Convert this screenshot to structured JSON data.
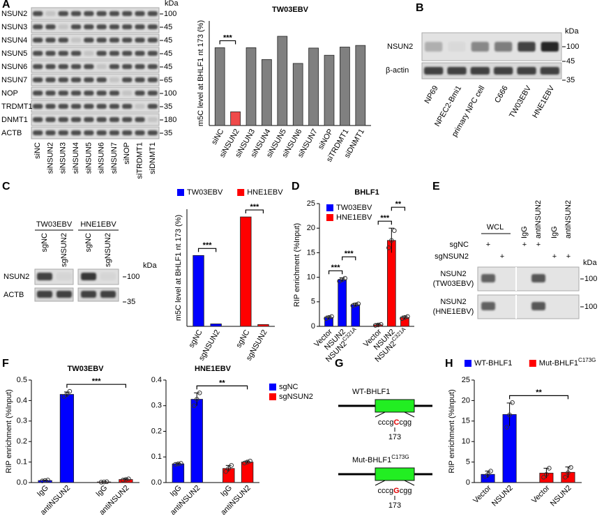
{
  "panel_labels": [
    "A",
    "B",
    "C",
    "D",
    "E",
    "F",
    "G",
    "H"
  ],
  "blots": {
    "A": {
      "kda": "kDa",
      "rows": [
        {
          "name": "NSUN2",
          "marker": "100"
        },
        {
          "name": "NSUN3",
          "marker": "45"
        },
        {
          "name": "NSUN4",
          "marker": "45"
        },
        {
          "name": "NSUN5",
          "marker": "45"
        },
        {
          "name": "NSUN6",
          "marker": "45"
        },
        {
          "name": "NSUN7",
          "marker": "65"
        },
        {
          "name": "NOP",
          "marker": "100"
        },
        {
          "name": "TRDMT1",
          "marker": "35"
        },
        {
          "name": "DNMT1",
          "marker": "180"
        },
        {
          "name": "ACTB",
          "marker": "35"
        }
      ],
      "lanes": [
        "siNC",
        "siNSUN2",
        "siNSUN3",
        "siNSUN4",
        "siNSUN5",
        "siNSUN6",
        "siNSUN7",
        "siNOP",
        "siTRDMT1",
        "siDNMT1"
      ]
    },
    "B": {
      "kda": "kDa",
      "rows": [
        {
          "name": "NSUN2",
          "marker": "100"
        },
        {
          "name": "β-actin",
          "marker": "35"
        }
      ],
      "extra_marker": "45",
      "lanes": [
        "NP69",
        "NPEC2-Bmi1",
        "primary NPC cell",
        "C666",
        "TW03EBV",
        "HNE1EBV"
      ]
    },
    "C": {
      "kda": "kDa",
      "groups": [
        "TW03EBV",
        "HNE1EBV"
      ],
      "lanes": [
        "sgNC",
        "sgNSUN2",
        "sgNC",
        "sgNSUN2"
      ],
      "rows": [
        {
          "name": "NSUN2",
          "marker": "100"
        },
        {
          "name": "ACTB",
          "marker": "35"
        }
      ]
    },
    "E": {
      "kda": "kDa",
      "headers": [
        "WCL",
        "IgG",
        "antiNSUN2",
        "IgG",
        "antiNSUN2"
      ],
      "conditions": [
        {
          "name": "sgNC",
          "marks": [
            "+",
            null,
            "+",
            "+",
            null,
            null
          ]
        },
        {
          "name": "sgNSUN2",
          "marks": [
            null,
            "+",
            null,
            null,
            "+",
            "+"
          ]
        }
      ],
      "rows": [
        {
          "name": [
            "NSUN2",
            "(TW03EBV)"
          ],
          "marker": "100"
        },
        {
          "name": [
            "NSUN2",
            "(HNE1EBV)"
          ],
          "marker": "100"
        }
      ]
    }
  },
  "diagram_G": {
    "constructs": [
      {
        "name": "WT-BHLF1",
        "seq_left": "cccg",
        "base": "C",
        "seq_right": "cgg",
        "position": "173"
      },
      {
        "name": "Mut-BHLF1",
        "name_sup": "C173G",
        "seq_left": "cccg",
        "base": "G",
        "seq_right": "cgg",
        "position": "173"
      }
    ]
  },
  "chart_data": [
    {
      "type": "bar",
      "title": "TW03EBV",
      "ylabel": "m5C level at BHLF1 nt 173 (%)",
      "categories": [
        "siNC",
        "siNSUN2",
        "siNSUN3",
        "siNSUN4",
        "siNSUN5",
        "siNSUN6",
        "siNSUN7",
        "siNOP",
        "siTRDMT1",
        "siDNMT1"
      ],
      "values": [
        23.8,
        4.2,
        23.8,
        20.2,
        27.3,
        19.0,
        23.7,
        21.5,
        24.0,
        24.5
      ],
      "colors": [
        "#808080",
        "#f04a4a",
        "#808080",
        "#808080",
        "#808080",
        "#808080",
        "#808080",
        "#808080",
        "#808080",
        "#808080"
      ],
      "ylim": [
        0,
        32
      ],
      "annotations": [
        {
          "text": "***",
          "from": [
            0,
            0
          ],
          "to": [
            0,
            1
          ]
        }
      ]
    },
    {
      "type": "bar",
      "ylabel": "m5C level at BHLF1 nt 173 (%)",
      "categories": [
        "sgNC",
        "sgNSUN2"
      ],
      "series": [
        {
          "name": "TW03EBV",
          "color": "#0000ff",
          "values": [
            23,
            0.8
          ]
        },
        {
          "name": "HNE1EBV",
          "color": "#ff0000",
          "values": [
            35.5,
            0.6
          ]
        }
      ],
      "ylim": [
        0,
        38
      ],
      "legend": "top",
      "annotations": [
        {
          "text": "***",
          "from": [
            0,
            0
          ],
          "to": [
            0,
            1
          ]
        },
        {
          "text": "***",
          "from": [
            1,
            0
          ],
          "to": [
            1,
            1
          ]
        }
      ]
    },
    {
      "type": "bar",
      "title": "BHLF1",
      "ylabel": "RIP enrichment (%Input)",
      "categories": [
        "Vector",
        "NSUN2",
        "NSUN2"
      ],
      "category_superscripts": [
        null,
        null,
        "C321A"
      ],
      "series": [
        {
          "name": "TW03EBV",
          "color": "#0000ff",
          "values": [
            1.8,
            9.5,
            4.4
          ],
          "errors": [
            0.3,
            0.4,
            0.3
          ],
          "points": [
            [
              1.6,
              1.8,
              2.0
            ],
            [
              9.2,
              9.5,
              9.8
            ],
            [
              4.2,
              4.4,
              4.6
            ]
          ]
        },
        {
          "name": "HNE1EBV",
          "color": "#ff0000",
          "values": [
            0.3,
            17.5,
            1.8
          ],
          "errors": [
            0.2,
            2.5,
            0.3
          ],
          "points": [
            [
              0.2,
              0.3,
              0.4
            ],
            [
              16.0,
              17.5,
              19.5
            ],
            [
              1.6,
              1.8,
              2.0
            ]
          ]
        }
      ],
      "ylim": [
        0,
        25
      ],
      "yticks": [
        0,
        5,
        10,
        15,
        20,
        25
      ],
      "legend": "upper left",
      "annotations": [
        {
          "text": "***",
          "from": [
            0,
            0
          ],
          "to": [
            0,
            1
          ]
        },
        {
          "text": "***",
          "from": [
            0,
            1
          ],
          "to": [
            0,
            2
          ]
        },
        {
          "text": "***",
          "from": [
            1,
            0
          ],
          "to": [
            1,
            1
          ]
        },
        {
          "text": "**",
          "from": [
            1,
            1
          ],
          "to": [
            1,
            2
          ]
        }
      ]
    },
    {
      "type": "bar",
      "title": "TW03EBV",
      "ylabel": "RIP enrichment (%Input)",
      "categories": [
        "IgG",
        "antiNSUN2"
      ],
      "series": [
        {
          "name": "sgNC",
          "color": "#0000ff",
          "values": [
            0.01,
            0.43
          ],
          "errors": [
            0.002,
            0.012
          ],
          "points": [
            [
              0.008,
              0.01,
              0.012
            ],
            [
              0.42,
              0.43,
              0.445
            ]
          ]
        },
        {
          "name": "sgNSUN2",
          "color": "#ff0000",
          "values": [
            0.003,
            0.015
          ],
          "errors": [
            0.001,
            0.004
          ],
          "points": [
            [
              0.002,
              0.003,
              0.004
            ],
            [
              0.012,
              0.015,
              0.018
            ]
          ]
        }
      ],
      "ylim": [
        0,
        0.5
      ],
      "yticks": [
        {
          "value": 0,
          "label": "0.0"
        },
        0.1,
        0.2,
        0.3,
        0.4,
        0.5
      ],
      "annotations": [
        {
          "text": "***",
          "from": [
            0,
            1
          ],
          "to": [
            1,
            1
          ]
        }
      ]
    },
    {
      "type": "bar",
      "title": "HNE1EBV",
      "categories": [
        "IgG",
        "antiNSUN2"
      ],
      "series": [
        {
          "name": "sgNC",
          "color": "#0000ff",
          "values": [
            0.073,
            0.325
          ],
          "errors": [
            0.003,
            0.025
          ],
          "points": [
            [
              0.071,
              0.073,
              0.075
            ],
            [
              0.3,
              0.325,
              0.35
            ]
          ]
        },
        {
          "name": "sgNSUN2",
          "color": "#ff0000",
          "values": [
            0.055,
            0.08
          ],
          "errors": [
            0.012,
            0.004
          ],
          "points": [
            [
              0.043,
              0.055,
              0.067
            ],
            [
              0.076,
              0.08,
              0.084
            ]
          ]
        }
      ],
      "ylim": [
        0,
        0.4
      ],
      "yticks": [
        {
          "value": 0,
          "label": "0.0"
        },
        0.1,
        0.2,
        0.3,
        0.4
      ],
      "legend": "right",
      "annotations": [
        {
          "text": "**",
          "from": [
            0,
            1
          ],
          "to": [
            1,
            1
          ]
        }
      ]
    },
    {
      "type": "bar",
      "ylabel": "RIP enrichment (%Input)",
      "categories": [
        "Vector",
        "NSUN2"
      ],
      "series": [
        {
          "name": "WT-BHLF1",
          "color": "#0000ff",
          "values": [
            2.0,
            16.6
          ],
          "errors": [
            0.8,
            2.8
          ],
          "points": [
            [
              1.5,
              2.0,
              2.8
            ],
            [
              13.5,
              16.5,
              19.5
            ]
          ]
        },
        {
          "name": "Mut-BHLF1",
          "name_sup": "C173G",
          "color": "#ff0000",
          "values": [
            2.3,
            2.5
          ],
          "errors": [
            1.2,
            1.3
          ],
          "points": [
            [
              1.3,
              2.0,
              3.5
            ],
            [
              1.3,
              2.4,
              3.7
            ]
          ]
        }
      ],
      "ylim": [
        0,
        25
      ],
      "yticks": [
        0,
        5,
        10,
        15,
        20,
        25
      ],
      "legend": "top",
      "annotations": [
        {
          "text": "**",
          "from": [
            0,
            1
          ],
          "to": [
            1,
            1
          ]
        }
      ]
    }
  ]
}
